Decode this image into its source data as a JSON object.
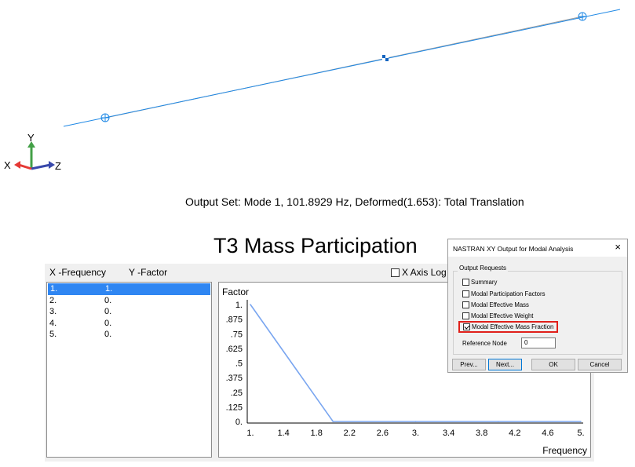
{
  "viewport": {
    "output_set": "Output Set: Mode 1, 101.8929 Hz, Deformed(1.653): Total Translation",
    "triad": {
      "x": "X",
      "y": "Y",
      "z": "Z"
    },
    "colors": {
      "beam_deformed": "#1e88e5",
      "beam_undeformed": "#9e9e9e",
      "node_mass": "#1565c0",
      "axis_x": "#e53935",
      "axis_y": "#43a047",
      "axis_z": "#3949ab"
    }
  },
  "xy_plot": {
    "title": "T3 Mass Participation",
    "x_header": "X -Frequency",
    "y_header": "Y -Factor",
    "x_axis_log_label": "X Axis Log",
    "x_axis_log_checked": false,
    "list": [
      {
        "x": "1.",
        "y": "1.",
        "selected": true
      },
      {
        "x": "2.",
        "y": "0.",
        "selected": false
      },
      {
        "x": "3.",
        "y": "0.",
        "selected": false
      },
      {
        "x": "4.",
        "y": "0.",
        "selected": false
      },
      {
        "x": "5.",
        "y": "0.",
        "selected": false
      }
    ]
  },
  "chart_data": {
    "type": "line",
    "title": "T3 Mass Participation",
    "xlabel": "Frequency",
    "ylabel": "Factor",
    "xlim": [
      1,
      5
    ],
    "ylim": [
      0,
      1
    ],
    "x_ticks": [
      "1.",
      "1.4",
      "1.8",
      "2.2",
      "2.6",
      "3.",
      "3.4",
      "3.8",
      "4.2",
      "4.6",
      "5."
    ],
    "x_tick_values": [
      1,
      1.4,
      1.8,
      2.2,
      2.6,
      3,
      3.4,
      3.8,
      4.2,
      4.6,
      5
    ],
    "y_ticks": [
      "1.",
      ".875",
      ".75",
      ".625",
      ".5",
      ".375",
      ".25",
      ".125",
      "0."
    ],
    "y_tick_values": [
      1,
      0.875,
      0.75,
      0.625,
      0.5,
      0.375,
      0.25,
      0.125,
      0
    ],
    "series": [
      {
        "x": [
          1,
          2,
          3,
          4,
          5
        ],
        "values": [
          1,
          0,
          0,
          0,
          0
        ],
        "color": "#7aa6f0"
      }
    ],
    "grid": false
  },
  "dialog": {
    "title": "NASTRAN XY Output for Modal Analysis",
    "close_icon": "×",
    "group_label": "Output Requests",
    "options": [
      {
        "label": "Summary",
        "checked": false
      },
      {
        "label": "Modal Participation Factors",
        "checked": false
      },
      {
        "label": "Modal Effective Mass",
        "checked": false
      },
      {
        "label": "Modal Effective Weight",
        "checked": false
      },
      {
        "label": "Modal Effective Mass Fraction",
        "checked": true
      }
    ],
    "reference_node_label": "Reference Node",
    "reference_node_value": "0",
    "buttons": {
      "prev": "Prev...",
      "next": "Next...",
      "ok": "OK",
      "cancel": "Cancel"
    },
    "highlight_color": "#e0201a"
  }
}
